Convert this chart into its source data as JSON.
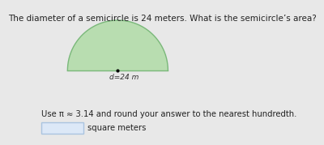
{
  "title": "The diameter of a semicircle is 24 meters. What is the semicircle’s area?",
  "title_fontsize": 7.5,
  "semicircle_fill_color": "#b8ddb0",
  "semicircle_edge_color": "#7ab87a",
  "diameter_label": "d=24 m",
  "diameter_fontsize": 6.5,
  "use_pi_text": "Use π ≈ 3.14 and round your answer to the nearest hundredth.",
  "use_pi_fontsize": 7.2,
  "square_meters_text": "square meters",
  "answer_box_color": "#dce8f7",
  "answer_box_edge_color": "#aac4e0",
  "bg_color": "#e8e8e8"
}
